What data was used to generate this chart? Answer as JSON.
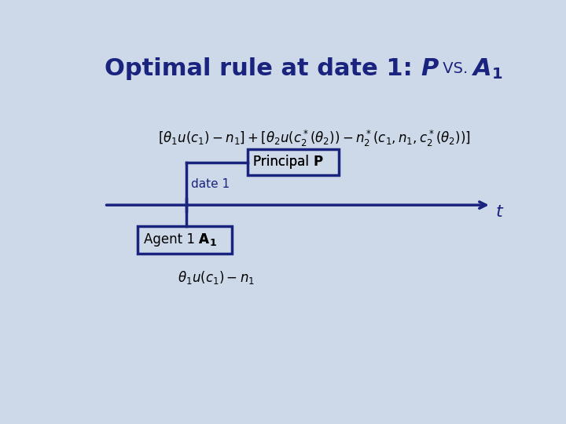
{
  "background_color": "#cdd9e8",
  "title_color": "#1a237e",
  "line_color": "#1a237e",
  "box_color": "#1a237e",
  "box_fill": "#cdd9e8",
  "date1_label": "date 1",
  "t_label": "t",
  "principal_label": "Principal ",
  "principal_P": "P",
  "agent_label": "Agent 1 ",
  "agent_A": "A",
  "agent_sub": "1",
  "formula_top": "$[\\theta_1 u(c_1) - n_1] + [\\theta_2 u(c_2^*(\\theta_2)) - n_2^*(c_1, n_1, c_2^*(\\theta_2))]$",
  "formula_bottom": "$\\theta_1 u(c_1) - n_1$",
  "title_part1": "Optimal rule at date 1: ",
  "title_P": "P",
  "title_vs": " VS. ",
  "title_A": "A",
  "title_sub1": "1"
}
